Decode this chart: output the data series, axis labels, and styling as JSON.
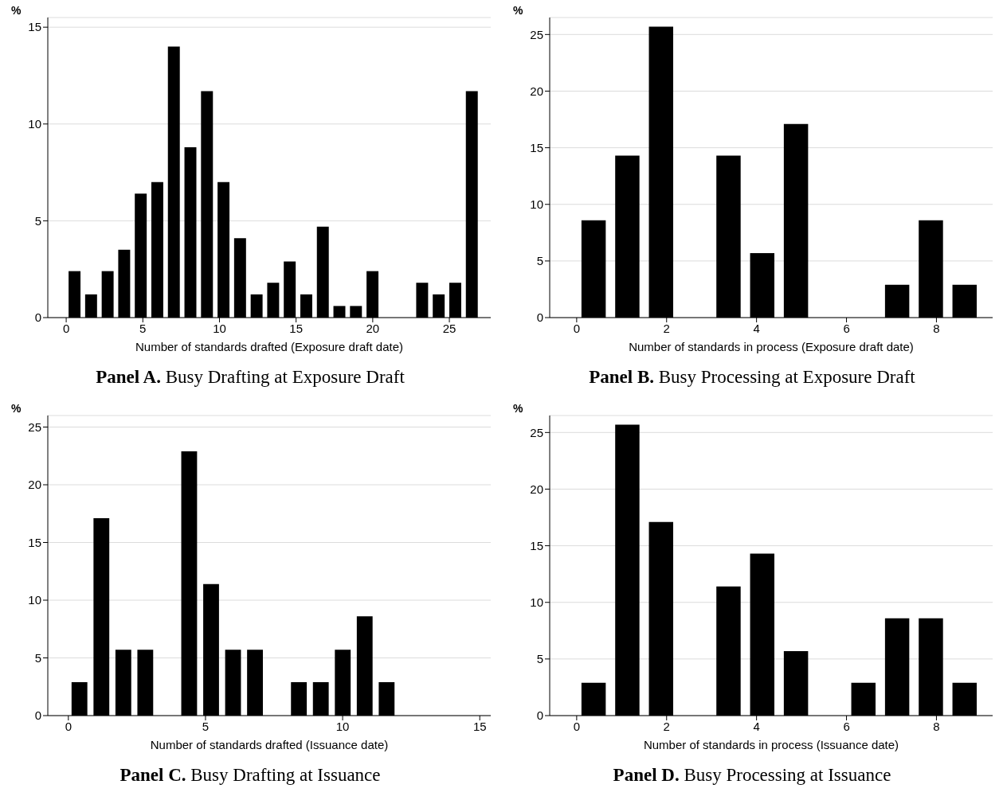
{
  "chart_data": [
    {
      "type": "histogram",
      "title": "Panel A. Busy Drafting at Exposure Draft",
      "xlabel": "Number of standards drafted (Exposure draft date)",
      "ylabel": "%",
      "color": "#000000",
      "bins": [
        0,
        1.08,
        2.16,
        3.24,
        4.32,
        5.4,
        6.48,
        7.56,
        8.64,
        9.72,
        10.8,
        11.88,
        12.96,
        14.04,
        15.12,
        16.2,
        17.28,
        18.36,
        19.44,
        20.52,
        21.6,
        22.68,
        23.76,
        24.84,
        25.92,
        27
      ],
      "values": [
        2.4,
        1.2,
        2.4,
        3.5,
        6.4,
        7.0,
        14.0,
        8.8,
        11.7,
        7.0,
        4.1,
        1.2,
        1.8,
        2.9,
        1.2,
        4.7,
        0.6,
        0.6,
        2.4,
        0,
        0,
        1.8,
        1.2,
        1.8,
        11.7
      ],
      "xlim": [
        -1.2,
        27.7
      ],
      "xticks": [
        0,
        5,
        10,
        15,
        20,
        25
      ],
      "ylim": [
        0,
        15.5
      ],
      "yticks": [
        0,
        5,
        10,
        15
      ],
      "grid": "y"
    },
    {
      "type": "histogram",
      "title": "Panel B. Busy Processing at Exposure Draft",
      "xlabel": "Number of standards in process (Exposure draft date)",
      "ylabel": "%",
      "color": "#000000",
      "bins": [
        0,
        0.75,
        1.5,
        2.25,
        3,
        3.75,
        4.5,
        5.25,
        6,
        6.75,
        7.5,
        8.25,
        9
      ],
      "values": [
        8.6,
        14.3,
        25.7,
        0,
        14.3,
        5.7,
        17.1,
        0,
        0,
        2.9,
        8.6,
        2.9
      ],
      "xlim": [
        -0.6,
        9.25
      ],
      "xticks": [
        0,
        2,
        4,
        6,
        8
      ],
      "ylim": [
        0,
        26.5
      ],
      "yticks": [
        0,
        5,
        10,
        15,
        20,
        25
      ],
      "grid": "y"
    },
    {
      "type": "histogram",
      "title": "Panel C. Busy Drafting at Issuance",
      "xlabel": "Number of standards drafted (Issuance date)",
      "ylabel": "%",
      "color": "#000000",
      "bins": [
        0,
        0.8,
        1.6,
        2.4,
        3.2,
        4,
        4.8,
        5.6,
        6.4,
        7.2,
        8,
        8.8,
        9.6,
        10.4,
        11.2,
        12
      ],
      "values": [
        2.9,
        17.1,
        5.7,
        5.7,
        0,
        22.9,
        11.4,
        5.7,
        5.7,
        0,
        2.9,
        2.9,
        5.7,
        8.6,
        2.9
      ],
      "xlim": [
        -0.75,
        15.4
      ],
      "xticks": [
        0,
        5,
        10,
        15
      ],
      "ylim": [
        0,
        26
      ],
      "yticks": [
        0,
        5,
        10,
        15,
        20,
        25
      ],
      "grid": "y"
    },
    {
      "type": "histogram",
      "title": "Panel D. Busy Processing at Issuance",
      "xlabel": "Number of standards in process (Issuance date)",
      "ylabel": "%",
      "color": "#000000",
      "bins": [
        0,
        0.75,
        1.5,
        2.25,
        3,
        3.75,
        4.5,
        5.25,
        6,
        6.75,
        7.5,
        8.25,
        9
      ],
      "values": [
        2.9,
        25.7,
        17.1,
        0,
        11.4,
        14.3,
        5.7,
        0,
        2.9,
        8.6,
        8.6,
        2.9
      ],
      "xlim": [
        -0.6,
        9.25
      ],
      "xticks": [
        0,
        2,
        4,
        6,
        8
      ],
      "ylim": [
        0,
        26.5
      ],
      "yticks": [
        0,
        5,
        10,
        15,
        20,
        25
      ],
      "grid": "y"
    }
  ]
}
